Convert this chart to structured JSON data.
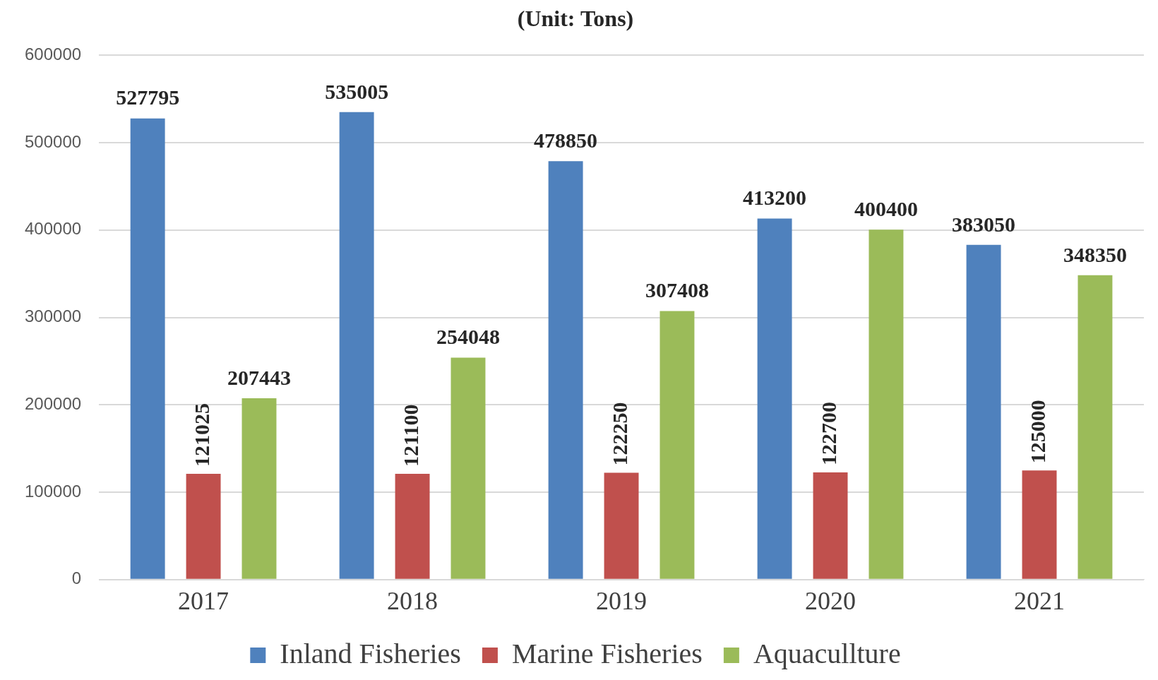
{
  "chart_data": {
    "type": "bar",
    "title": "(Unit: Tons)",
    "categories": [
      "2017",
      "2018",
      "2019",
      "2020",
      "2021"
    ],
    "series": [
      {
        "name": "Inland Fisheries",
        "color": "#4f81bd",
        "values": [
          527795,
          535005,
          478850,
          413200,
          383050
        ]
      },
      {
        "name": "Marine Fisheries",
        "color": "#c0504d",
        "values": [
          121025,
          121100,
          122250,
          122700,
          125000
        ]
      },
      {
        "name": "Aquacullture",
        "color": "#9bbb59",
        "values": [
          207443,
          254048,
          307408,
          400400,
          348350
        ]
      }
    ],
    "ylim": [
      0,
      600000
    ],
    "yticks": [
      0,
      100000,
      200000,
      300000,
      400000,
      500000,
      600000
    ],
    "grid": "y",
    "legend": "bottom",
    "data_labels": true
  }
}
